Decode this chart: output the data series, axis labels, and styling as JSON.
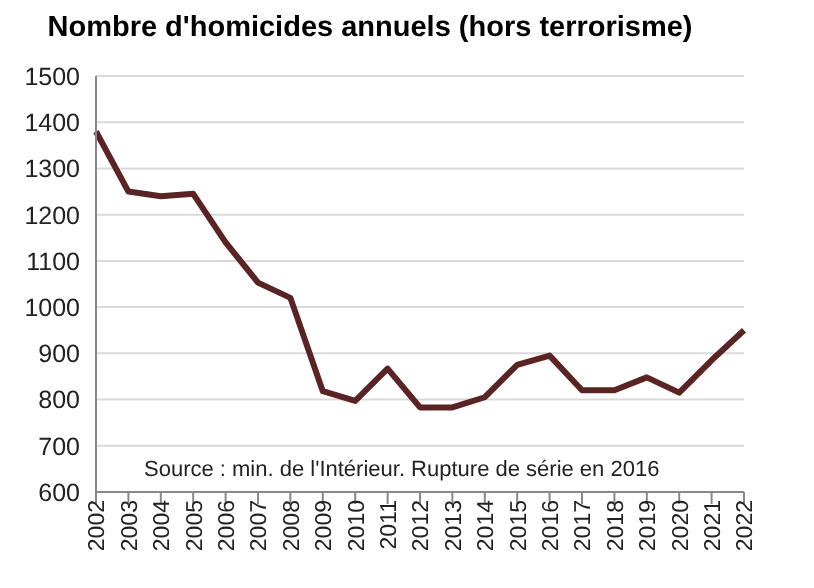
{
  "chart_data": {
    "type": "line",
    "title": "Nombre d'homicides annuels (hors terrorisme)",
    "categories": [
      "2002",
      "2003",
      "2004",
      "2005",
      "2006",
      "2007",
      "2008",
      "2009",
      "2010",
      "2011",
      "2012",
      "2013",
      "2014",
      "2015",
      "2016",
      "2017",
      "2018",
      "2019",
      "2020",
      "2021",
      "2022"
    ],
    "series": [
      {
        "color": "#5a2424",
        "values": [
          1380,
          1250,
          1240,
          1245,
          1140,
          1053,
          1020,
          818,
          797,
          867,
          783,
          783,
          805,
          875,
          895,
          820,
          820,
          848,
          815,
          885,
          950
        ]
      }
    ],
    "ylim": [
      600,
      1500
    ],
    "yticks": [
      600,
      700,
      800,
      900,
      1000,
      1100,
      1200,
      1300,
      1400,
      1500
    ],
    "grid": "y",
    "marker": "none",
    "line_style": "solid",
    "annotations": [
      "Source : min. de l'Intérieur. Rupture de série en 2016"
    ]
  }
}
